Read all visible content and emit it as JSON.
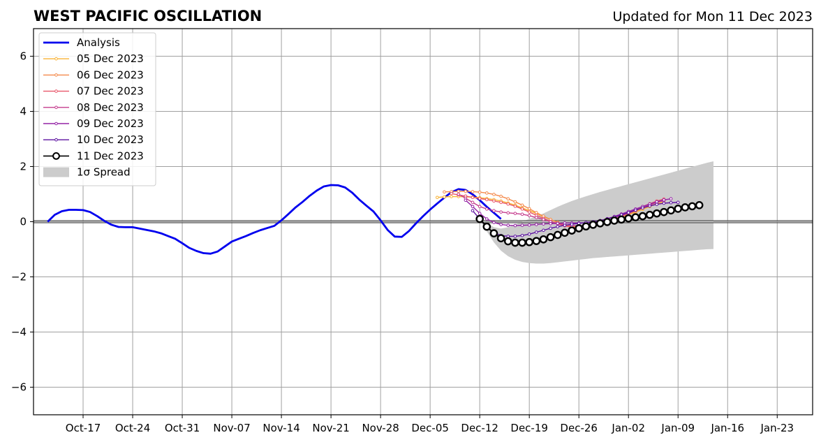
{
  "chart_data": {
    "type": "line",
    "title": "WEST PACIFIC OSCILLATION",
    "subtitle": "Updated for Mon 11 Dec 2023",
    "xlabel": "",
    "ylabel": "",
    "xlim": [
      "2023-10-10",
      "2024-01-28"
    ],
    "ylim": [
      -7,
      7
    ],
    "yticks": [
      6,
      4,
      2,
      0,
      -2,
      -4,
      -6
    ],
    "ytick_labels": [
      "6",
      "4",
      "2",
      "0",
      "−2",
      "−4",
      "−6"
    ],
    "xticks": [
      "2023-10-17",
      "2023-10-24",
      "2023-10-31",
      "2023-11-07",
      "2023-11-14",
      "2023-11-21",
      "2023-11-28",
      "2023-12-05",
      "2023-12-12",
      "2023-12-19",
      "2023-12-26",
      "2024-01-02",
      "2024-01-09",
      "2024-01-16",
      "2024-01-23"
    ],
    "xtick_labels": [
      "Oct-17",
      "Oct-24",
      "Oct-31",
      "Nov-07",
      "Nov-14",
      "Nov-21",
      "Nov-28",
      "Dec-05",
      "Dec-12",
      "Dec-19",
      "Dec-26",
      "Jan-02",
      "Jan-09",
      "Jan-16",
      "Jan-23"
    ],
    "grid": true,
    "legend_position": "top-left",
    "series": [
      {
        "name": "Analysis",
        "color": "#0000ee",
        "style": "analysis",
        "start": "2023-10-12",
        "values": [
          0.0,
          0.25,
          0.38,
          0.43,
          0.43,
          0.42,
          0.35,
          0.2,
          0.03,
          -0.11,
          -0.19,
          -0.2,
          -0.2,
          -0.25,
          -0.3,
          -0.35,
          -0.42,
          -0.52,
          -0.62,
          -0.78,
          -0.95,
          -1.06,
          -1.14,
          -1.16,
          -1.08,
          -0.9,
          -0.72,
          -0.62,
          -0.52,
          -0.41,
          -0.31,
          -0.23,
          -0.15,
          0.05,
          0.28,
          0.52,
          0.72,
          0.94,
          1.13,
          1.28,
          1.33,
          1.32,
          1.24,
          1.05,
          0.8,
          0.58,
          0.37,
          0.05,
          -0.3,
          -0.54,
          -0.55,
          -0.34,
          -0.06,
          0.2,
          0.44,
          0.66,
          0.87,
          1.07,
          1.18,
          1.15,
          0.99,
          0.78,
          0.54,
          0.32,
          0.1
        ]
      },
      {
        "name": "05 Dec 2023",
        "color": "#f9b233",
        "style": "forecast",
        "start": "2023-12-06",
        "values": [
          0.88,
          0.9,
          0.91,
          0.91,
          0.9,
          0.89,
          0.87,
          0.84,
          0.8,
          0.75,
          0.68,
          0.6,
          0.5,
          0.4,
          0.3,
          0.18,
          0.08,
          -0.02,
          -0.1,
          -0.15,
          -0.18,
          -0.18,
          -0.16,
          -0.1,
          -0.02,
          0.07,
          0.16,
          0.25,
          0.35,
          0.45,
          0.55,
          0.65,
          0.72
        ]
      },
      {
        "name": "06 Dec 2023",
        "color": "#f4894a",
        "style": "forecast",
        "start": "2023-12-07",
        "values": [
          1.08,
          1.09,
          1.1,
          1.1,
          1.09,
          1.07,
          1.04,
          0.99,
          0.92,
          0.83,
          0.72,
          0.6,
          0.47,
          0.33,
          0.2,
          0.08,
          -0.03,
          -0.12,
          -0.18,
          -0.2,
          -0.2,
          -0.16,
          -0.1,
          -0.02,
          0.07,
          0.17,
          0.27,
          0.38,
          0.49,
          0.6,
          0.7,
          0.78
        ]
      },
      {
        "name": "07 Dec 2023",
        "color": "#e8566a",
        "style": "forecast",
        "start": "2023-12-08",
        "values": [
          1.02,
          0.97,
          0.93,
          0.88,
          0.84,
          0.8,
          0.75,
          0.7,
          0.64,
          0.56,
          0.46,
          0.35,
          0.23,
          0.12,
          0.01,
          -0.08,
          -0.15,
          -0.2,
          -0.22,
          -0.2,
          -0.15,
          -0.07,
          0.02,
          0.12,
          0.22,
          0.33,
          0.44,
          0.55,
          0.65,
          0.75,
          0.82
        ]
      },
      {
        "name": "08 Dec 2023",
        "color": "#c53c8e",
        "style": "forecast",
        "start": "2023-12-09",
        "values": [
          1.0,
          0.85,
          0.7,
          0.55,
          0.46,
          0.4,
          0.35,
          0.32,
          0.3,
          0.27,
          0.22,
          0.15,
          0.08,
          0.0,
          -0.06,
          -0.11,
          -0.14,
          -0.15,
          -0.14,
          -0.1,
          -0.04,
          0.03,
          0.12,
          0.21,
          0.31,
          0.41,
          0.51,
          0.61,
          0.7,
          0.76
        ]
      },
      {
        "name": "09 Dec 2023",
        "color": "#9423a5",
        "style": "forecast",
        "start": "2023-12-10",
        "values": [
          0.78,
          0.55,
          0.3,
          0.1,
          -0.03,
          -0.1,
          -0.13,
          -0.14,
          -0.13,
          -0.12,
          -0.1,
          -0.08,
          -0.07,
          -0.06,
          -0.05,
          -0.05,
          -0.05,
          -0.04,
          -0.01,
          0.04,
          0.11,
          0.19,
          0.28,
          0.37,
          0.46,
          0.55,
          0.64,
          0.72,
          0.79,
          0.83
        ]
      },
      {
        "name": "10 Dec 2023",
        "color": "#5b10a0",
        "style": "forecast",
        "start": "2023-12-11",
        "values": [
          0.4,
          0.1,
          -0.2,
          -0.4,
          -0.5,
          -0.53,
          -0.53,
          -0.5,
          -0.45,
          -0.38,
          -0.31,
          -0.24,
          -0.18,
          -0.13,
          -0.09,
          -0.06,
          -0.03,
          0.0,
          0.04,
          0.1,
          0.17,
          0.25,
          0.33,
          0.42,
          0.5,
          0.57,
          0.63,
          0.67,
          0.69,
          0.7
        ]
      },
      {
        "name": "11 Dec 2023",
        "color": "#000000",
        "style": "current",
        "start": "2023-12-12",
        "values": [
          0.1,
          -0.18,
          -0.42,
          -0.6,
          -0.71,
          -0.76,
          -0.76,
          -0.74,
          -0.7,
          -0.64,
          -0.56,
          -0.48,
          -0.4,
          -0.32,
          -0.24,
          -0.17,
          -0.11,
          -0.06,
          -0.01,
          0.04,
          0.08,
          0.12,
          0.16,
          0.2,
          0.25,
          0.3,
          0.35,
          0.41,
          0.47,
          0.52,
          0.56,
          0.6
        ]
      }
    ],
    "spread": {
      "name": "1σ Spread",
      "color": "#cccccc",
      "start": "2023-12-12",
      "upper": [
        0.15,
        -0.05,
        -0.2,
        -0.25,
        -0.2,
        -0.1,
        0.0,
        0.1,
        0.2,
        0.3,
        0.42,
        0.54,
        0.65,
        0.75,
        0.84,
        0.92,
        1.0,
        1.08,
        1.15,
        1.22,
        1.29,
        1.36,
        1.43,
        1.5,
        1.57,
        1.64,
        1.71,
        1.78,
        1.85,
        1.92,
        1.99,
        2.06,
        2.13,
        2.19
      ],
      "lower": [
        0.05,
        -0.35,
        -0.75,
        -1.05,
        -1.25,
        -1.38,
        -1.46,
        -1.5,
        -1.52,
        -1.52,
        -1.5,
        -1.47,
        -1.44,
        -1.41,
        -1.38,
        -1.35,
        -1.32,
        -1.3,
        -1.28,
        -1.26,
        -1.24,
        -1.22,
        -1.2,
        -1.18,
        -1.16,
        -1.14,
        -1.12,
        -1.1,
        -1.08,
        -1.06,
        -1.04,
        -1.02,
        -1.0,
        -0.99
      ]
    }
  }
}
